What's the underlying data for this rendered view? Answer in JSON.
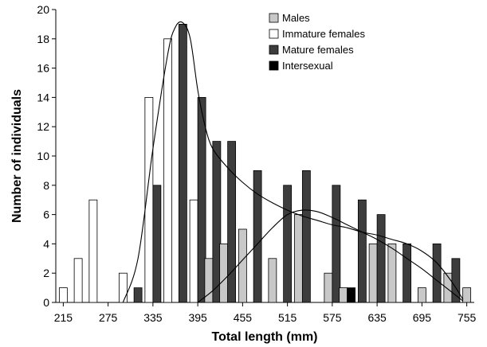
{
  "chart_data": {
    "type": "bar",
    "xlabel": "Total length (mm)",
    "ylabel": "Number of individuals",
    "ylim": [
      0,
      20
    ],
    "yticks": [
      0,
      2,
      4,
      6,
      8,
      10,
      12,
      14,
      16,
      18,
      20
    ],
    "xtick_labels": [
      "215",
      "275",
      "335",
      "395",
      "455",
      "515",
      "575",
      "635",
      "695",
      "755"
    ],
    "categories": [
      215,
      235,
      255,
      275,
      295,
      315,
      335,
      355,
      375,
      395,
      415,
      435,
      455,
      475,
      495,
      515,
      535,
      555,
      575,
      595,
      615,
      635,
      655,
      675,
      695,
      715,
      735,
      755
    ],
    "legend_position": "top-center",
    "series": [
      {
        "name": "Males",
        "color": "#c8c8c8",
        "values": [
          0,
          0,
          0,
          0,
          0,
          0,
          0,
          0,
          0,
          0,
          3,
          4,
          5,
          0,
          3,
          0,
          6,
          0,
          2,
          1,
          0,
          4,
          4,
          0,
          1,
          0,
          2,
          1
        ]
      },
      {
        "name": "Immature females",
        "color": "#ffffff",
        "values": [
          1,
          3,
          7,
          0,
          2,
          0,
          14,
          18,
          0,
          7,
          0,
          0,
          0,
          0,
          0,
          0,
          0,
          0,
          0,
          0,
          0,
          0,
          0,
          0,
          0,
          0,
          0,
          0
        ]
      },
      {
        "name": "Mature females",
        "color": "#3d3d3d",
        "values": [
          0,
          0,
          0,
          0,
          0,
          1,
          8,
          0,
          19,
          14,
          11,
          11,
          0,
          9,
          0,
          8,
          9,
          0,
          8,
          0,
          7,
          6,
          0,
          4,
          0,
          4,
          3,
          0
        ]
      },
      {
        "name": "Intersexual",
        "color": "#000000",
        "values": [
          0,
          0,
          0,
          0,
          0,
          0,
          0,
          0,
          0,
          0,
          0,
          0,
          0,
          0,
          0,
          0,
          0,
          0,
          0,
          1,
          0,
          0,
          0,
          0,
          0,
          0,
          0,
          0
        ]
      }
    ],
    "fitted_curves": [
      {
        "of": "Mature females",
        "x": [
          295,
          315,
          335,
          355,
          365,
          375,
          385,
          395,
          405,
          415,
          435,
          455,
          475,
          495,
          515,
          535,
          555,
          575,
          595,
          615,
          635,
          655,
          675,
          695,
          715,
          735,
          750
        ],
        "y": [
          0,
          3,
          10.5,
          17,
          18.8,
          19.1,
          18,
          14.5,
          12,
          10.5,
          9.2,
          8.2,
          7.4,
          6.8,
          6.3,
          5.9,
          5.6,
          5.3,
          5.1,
          4.8,
          4.6,
          4.3,
          4.0,
          3.5,
          2.7,
          1.4,
          0.2
        ]
      },
      {
        "of": "Males",
        "x": [
          395,
          415,
          435,
          455,
          475,
          495,
          515,
          535,
          555,
          575,
          595,
          615,
          635,
          655,
          675,
          695,
          715,
          735,
          750
        ],
        "y": [
          0,
          0.8,
          1.8,
          2.9,
          4.0,
          5.1,
          6.0,
          6.3,
          6.2,
          5.8,
          5.3,
          4.8,
          4.3,
          3.7,
          3.0,
          2.3,
          1.5,
          0.7,
          0.1
        ]
      }
    ]
  }
}
